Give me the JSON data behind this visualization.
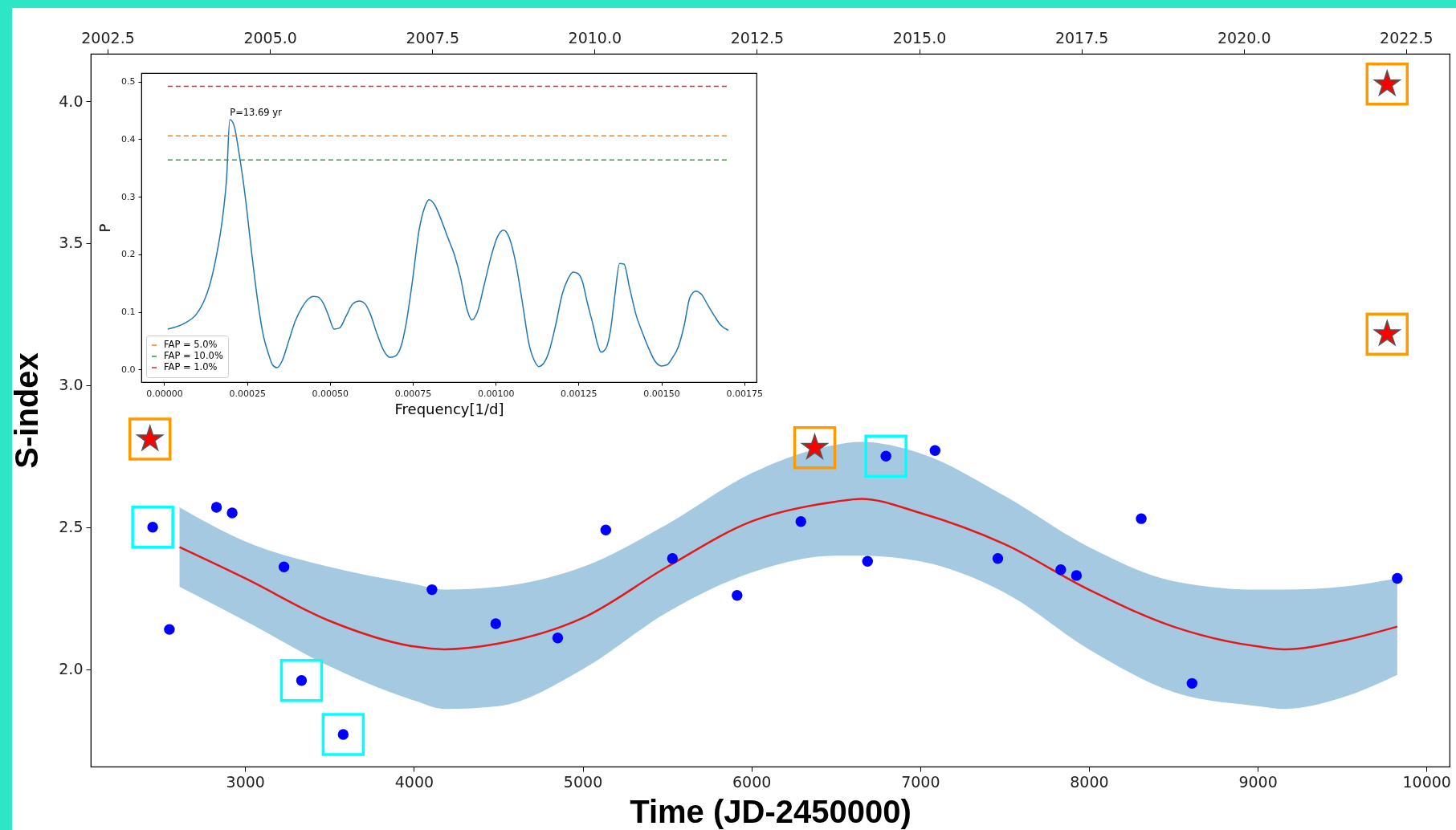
{
  "chart_data": [
    {
      "type": "scatter",
      "xlabel": "Time (JD-2450000)",
      "ylabel": "S-index",
      "xlim": [
        2085,
        10137
      ],
      "ylim": [
        1.657,
        4.167
      ],
      "xticks": [
        3000,
        4000,
        5000,
        6000,
        7000,
        8000,
        9000,
        10000
      ],
      "yticks": [
        {
          "value": 2,
          "label": "2.0"
        },
        2.5,
        {
          "value": 3,
          "label": "3.0"
        },
        3.5,
        {
          "value": 4,
          "label": "4.0"
        }
      ],
      "x2lim": [
        2002.24,
        2023.17
      ],
      "x2ticks": [
        2002.5,
        {
          "value": 2005,
          "label": "2005.0"
        },
        2007.5,
        {
          "value": 2010,
          "label": "2010.0"
        },
        2012.5,
        {
          "value": 2015,
          "label": "2015.0"
        },
        2017.5,
        {
          "value": 2020,
          "label": "2020.0"
        },
        2022.5
      ],
      "grid": false,
      "series": [
        {
          "type": "line",
          "color": "#e31a1c",
          "x": [
            2611,
            3000,
            3500,
            4000,
            4178,
            4500,
            5000,
            5500,
            6000,
            6500,
            6650,
            7000,
            7500,
            8000,
            8500,
            9000,
            9160,
            9500,
            9827
          ],
          "values": [
            2.43,
            2.32,
            2.17,
            2.08,
            2.07,
            2.09,
            2.18,
            2.36,
            2.52,
            2.59,
            2.6,
            2.55,
            2.44,
            2.28,
            2.15,
            2.08,
            2.07,
            2.1,
            2.15
          ],
          "lower": [
            2.29,
            2.17,
            2.01,
            1.89,
            1.86,
            1.87,
            2.0,
            2.2,
            2.34,
            2.4,
            2.4,
            2.38,
            2.27,
            2.07,
            1.92,
            1.87,
            1.86,
            1.9,
            1.98
          ],
          "upper": [
            2.57,
            2.45,
            2.36,
            2.3,
            2.28,
            2.29,
            2.36,
            2.51,
            2.69,
            2.79,
            2.8,
            2.76,
            2.61,
            2.43,
            2.31,
            2.28,
            2.28,
            2.29,
            2.32
          ]
        },
        {
          "type": "scatter",
          "marker": "circle",
          "color": "#0000ff",
          "x": [
            2452,
            2551,
            2830,
            2923,
            3230,
            3334,
            3581,
            4107,
            4485,
            4852,
            5137,
            5532,
            5915,
            6293,
            6688,
            6797,
            7088,
            7460,
            7833,
            7926,
            8310,
            8611,
            9827
          ],
          "values": [
            2.5,
            2.14,
            2.57,
            2.55,
            2.36,
            1.96,
            1.77,
            2.28,
            2.16,
            2.11,
            2.49,
            2.39,
            2.26,
            2.52,
            2.38,
            2.75,
            2.77,
            2.39,
            2.35,
            2.33,
            2.53,
            1.95,
            2.32
          ]
        },
        {
          "type": "scatter",
          "marker": "star",
          "color": "#ff0000",
          "x": [
            2436,
            6375,
            9767,
            9767
          ],
          "values": [
            2.81,
            2.78,
            4.06,
            3.18
          ]
        }
      ]
    },
    {
      "type": "line",
      "xlabel": "Frequency[1/d]",
      "ylabel": "P",
      "xlim": [
        -6.9e-05,
        0.001787
      ],
      "ylim": [
        -0.022,
        0.515
      ],
      "xticks": [
        {
          "value": 0,
          "label": "0.00000"
        },
        {
          "value": 0.00025,
          "label": "0.00025"
        },
        {
          "value": 0.0005,
          "label": "0.00050"
        },
        {
          "value": 0.00075,
          "label": "0.00075"
        },
        {
          "value": 0.001,
          "label": "0.00100"
        },
        {
          "value": 0.00125,
          "label": "0.00125"
        },
        {
          "value": 0.0015,
          "label": "0.00150"
        },
        {
          "value": 0.00175,
          "label": "0.00175"
        }
      ],
      "yticks": [
        {
          "value": 0,
          "label": "0.0"
        },
        0.1,
        0.2,
        0.3,
        0.4,
        0.5
      ],
      "grid": false,
      "legend": "bottom left",
      "annotations": [
        {
          "text": "P=13.69 yr",
          "x": 0.000198,
          "y": 0.434
        }
      ],
      "series": [
        {
          "color": "#1f77b4",
          "x": [
            1.06e-05,
            6.38e-05,
            9.71e-05,
            0.000117,
            0.000137,
            0.000157,
            0.000177,
            0.000188,
            0.000198,
            0.00021,
            0.000226,
            0.000243,
            0.000263,
            0.000283,
            0.000301,
            0.000314,
            0.000327,
            0.00034,
            0.000356,
            0.000376,
            0.000396,
            0.000416,
            0.000436,
            0.000449,
            0.000463,
            0.00048,
            0.000496,
            0.000513,
            0.000529,
            0.000549,
            0.000569,
            0.000589,
            0.000606,
            0.000622,
            0.000642,
            0.000662,
            0.000682,
            0.000699,
            0.000715,
            0.000729,
            0.000749,
            0.000769,
            0.000786,
            0.000799,
            0.000815,
            0.000835,
            0.000855,
            0.000875,
            0.000895,
            0.000912,
            0.000928,
            0.000945,
            0.000965,
            0.000988,
            0.001005,
            0.001024,
            0.001043,
            0.001061,
            0.001081,
            0.001101,
            0.001117,
            0.00113,
            0.001144,
            0.001161,
            0.001181,
            0.001201,
            0.001218,
            0.001234,
            0.001247,
            0.001261,
            0.001277,
            0.001294,
            0.001307,
            0.001318,
            0.001331,
            0.001347,
            0.00136,
            0.001374,
            0.001387,
            0.001404,
            0.001423,
            0.001444,
            0.001463,
            0.00148,
            0.0015,
            0.001517,
            0.001533,
            0.001551,
            0.001569,
            0.001586,
            0.001604,
            0.00162,
            0.00164,
            0.00166,
            0.001679,
            0.001702
          ],
          "values": [
            0.07,
            0.081,
            0.096,
            0.115,
            0.146,
            0.196,
            0.268,
            0.33,
            0.434,
            0.425,
            0.375,
            0.307,
            0.207,
            0.115,
            0.054,
            0.028,
            0.008,
            0.003,
            0.015,
            0.05,
            0.085,
            0.108,
            0.123,
            0.127,
            0.126,
            0.115,
            0.093,
            0.07,
            0.072,
            0.093,
            0.114,
            0.119,
            0.114,
            0.096,
            0.062,
            0.033,
            0.021,
            0.024,
            0.041,
            0.077,
            0.154,
            0.242,
            0.282,
            0.295,
            0.287,
            0.261,
            0.23,
            0.2,
            0.157,
            0.108,
            0.086,
            0.1,
            0.146,
            0.2,
            0.23,
            0.242,
            0.226,
            0.184,
            0.115,
            0.043,
            0.015,
            0.005,
            0.01,
            0.031,
            0.077,
            0.131,
            0.157,
            0.169,
            0.167,
            0.154,
            0.115,
            0.077,
            0.045,
            0.03,
            0.035,
            0.07,
            0.131,
            0.184,
            0.183,
            0.142,
            0.096,
            0.062,
            0.035,
            0.015,
            0.006,
            0.008,
            0.02,
            0.039,
            0.077,
            0.125,
            0.136,
            0.131,
            0.112,
            0.093,
            0.077,
            0.068
          ]
        },
        {
          "name": "FAP =  5.0%",
          "color": "#ff7f0e",
          "line_style": "dashed",
          "x": [
            1.06e-05,
            0.0017
          ],
          "values": [
            0.406,
            0.406
          ]
        },
        {
          "name": "FAP = 10.0%",
          "color": "#2ca02c",
          "line_style": "dashed",
          "x": [
            1.06e-05,
            0.0017
          ],
          "values": [
            0.364,
            0.364
          ]
        },
        {
          "name": "FAP =  1.0%",
          "color": "#d62728",
          "line_style": "dashed",
          "x": [
            1.06e-05,
            0.0017
          ],
          "values": [
            0.492,
            0.492
          ]
        }
      ]
    }
  ]
}
